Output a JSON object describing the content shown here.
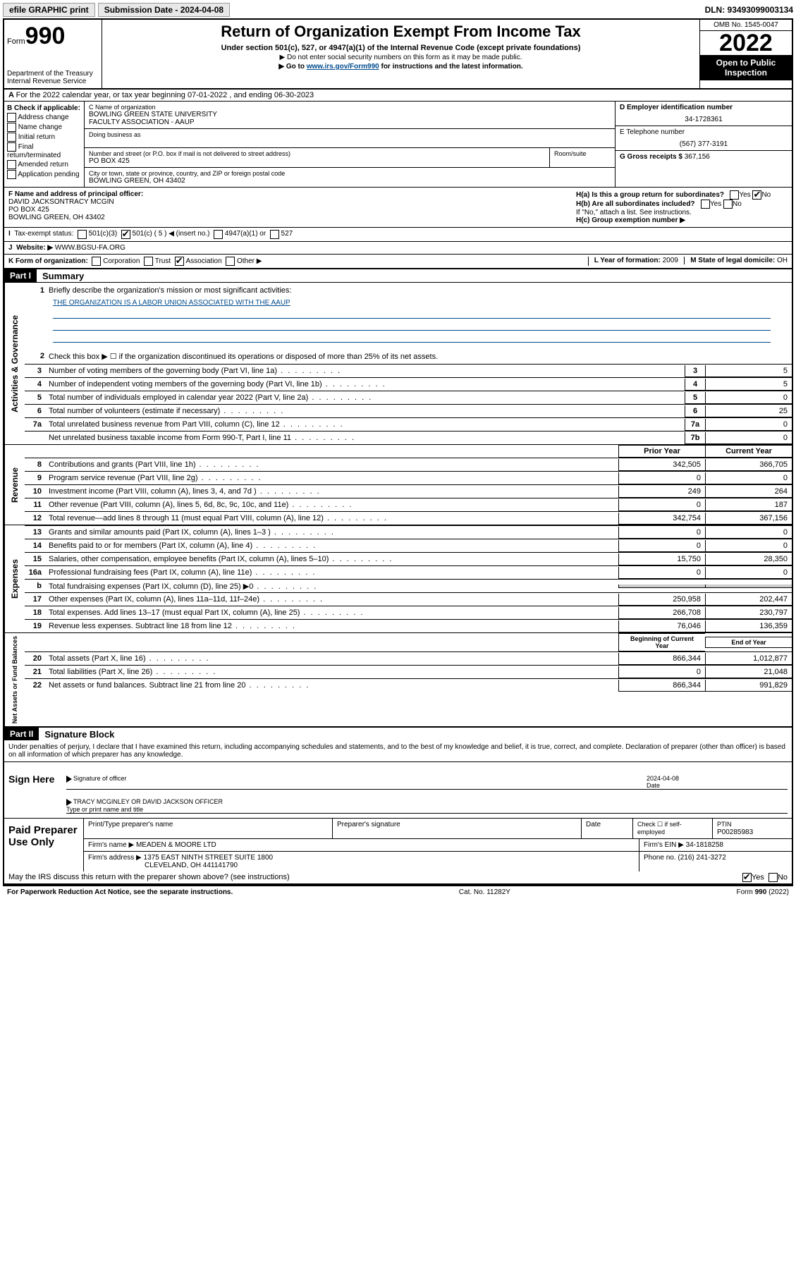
{
  "topbar": {
    "efile": "efile GRAPHIC print",
    "subdate_label": "Submission Date - 2024-04-08",
    "dln": "DLN: 93493099003134"
  },
  "header": {
    "form_word": "Form",
    "form_num": "990",
    "dept": "Department of the Treasury",
    "irs": "Internal Revenue Service",
    "title": "Return of Organization Exempt From Income Tax",
    "sub1": "Under section 501(c), 527, or 4947(a)(1) of the Internal Revenue Code (except private foundations)",
    "sub2": "▶ Do not enter social security numbers on this form as it may be made public.",
    "sub3_pre": "▶ Go to ",
    "sub3_link": "www.irs.gov/Form990",
    "sub3_post": " for instructions and the latest information.",
    "omb": "OMB No. 1545-0047",
    "year": "2022",
    "insp": "Open to Public Inspection"
  },
  "rowA": "For the 2022 calendar year, or tax year beginning 07-01-2022    , and ending 06-30-2023",
  "colB": {
    "label": "B Check if applicable:",
    "items": [
      "Address change",
      "Name change",
      "Initial return",
      "Final return/terminated",
      "Amended return",
      "Application pending"
    ]
  },
  "colC": {
    "name_label": "C Name of organization",
    "name": "BOWLING GREEN STATE UNIVERSITY\nFACULTY ASSOCIATION - AAUP",
    "dba": "Doing business as",
    "addr_label": "Number and street (or P.O. box if mail is not delivered to street address)",
    "room": "Room/suite",
    "addr": "PO BOX 425",
    "city_label": "City or town, state or province, country, and ZIP or foreign postal code",
    "city": "BOWLING GREEN, OH   43402"
  },
  "colD": {
    "ein_label": "D Employer identification number",
    "ein": "34-1728361",
    "tel_label": "E Telephone number",
    "tel": "(567) 377-3191",
    "gross_label": "G Gross receipts $",
    "gross": "367,156"
  },
  "rowF": {
    "label": "F  Name and address of principal officer:",
    "name": "DAVID JACKSONTRACY MCGIN",
    "addr1": "PO BOX 425",
    "addr2": "BOWLING GREEN, OH   43402"
  },
  "rowH": {
    "a": "H(a)  Is this a group return for subordinates?",
    "b": "H(b)  Are all subordinates included?",
    "b2": "If \"No,\" attach a list. See instructions.",
    "c": "H(c)  Group exemption number ▶"
  },
  "rowI": {
    "label": "Tax-exempt status:",
    "opts": [
      "501(c)(3)",
      "501(c) ( 5 ) ◀ (insert no.)",
      "4947(a)(1) or",
      "527"
    ],
    "checked_idx": 1
  },
  "rowJ": {
    "label": "Website: ▶",
    "val": "WWW.BGSU-FA.ORG"
  },
  "rowK": {
    "label": "K Form of organization:",
    "opts": [
      "Corporation",
      "Trust",
      "Association",
      "Other ▶"
    ],
    "checked_idx": 2,
    "year_label": "L Year of formation:",
    "year": "2009",
    "state_label": "M State of legal domicile:",
    "state": "OH"
  },
  "part1": {
    "tag": "Part I",
    "label": "Summary",
    "line1_label": "Briefly describe the organization's mission or most significant activities:",
    "line1_val": "THE ORGANIZATION IS A LABOR UNION ASSOCIATED WITH THE AAUP",
    "line2": "Check this box ▶ ☐  if the organization discontinued its operations or disposed of more than 25% of its net assets.",
    "gov_lines": [
      {
        "n": "3",
        "t": "Number of voting members of the governing body (Part VI, line 1a)",
        "box": "3",
        "v": "5"
      },
      {
        "n": "4",
        "t": "Number of independent voting members of the governing body (Part VI, line 1b)",
        "box": "4",
        "v": "5"
      },
      {
        "n": "5",
        "t": "Total number of individuals employed in calendar year 2022 (Part V, line 2a)",
        "box": "5",
        "v": "0"
      },
      {
        "n": "6",
        "t": "Total number of volunteers (estimate if necessary)",
        "box": "6",
        "v": "25"
      },
      {
        "n": "7a",
        "t": "Total unrelated business revenue from Part VIII, column (C), line 12",
        "box": "7a",
        "v": "0"
      },
      {
        "n": "",
        "t": "Net unrelated business taxable income from Form 990-T, Part I, line 11",
        "box": "7b",
        "v": "0"
      }
    ],
    "col_hdrs": {
      "prior": "Prior Year",
      "current": "Current Year"
    },
    "rev_lines": [
      {
        "n": "8",
        "t": "Contributions and grants (Part VIII, line 1h)",
        "p": "342,505",
        "c": "366,705"
      },
      {
        "n": "9",
        "t": "Program service revenue (Part VIII, line 2g)",
        "p": "0",
        "c": "0"
      },
      {
        "n": "10",
        "t": "Investment income (Part VIII, column (A), lines 3, 4, and 7d )",
        "p": "249",
        "c": "264"
      },
      {
        "n": "11",
        "t": "Other revenue (Part VIII, column (A), lines 5, 6d, 8c, 9c, 10c, and 11e)",
        "p": "0",
        "c": "187"
      },
      {
        "n": "12",
        "t": "Total revenue—add lines 8 through 11 (must equal Part VIII, column (A), line 12)",
        "p": "342,754",
        "c": "367,156"
      }
    ],
    "exp_lines": [
      {
        "n": "13",
        "t": "Grants and similar amounts paid (Part IX, column (A), lines 1–3 )",
        "p": "0",
        "c": "0"
      },
      {
        "n": "14",
        "t": "Benefits paid to or for members (Part IX, column (A), line 4)",
        "p": "0",
        "c": "0"
      },
      {
        "n": "15",
        "t": "Salaries, other compensation, employee benefits (Part IX, column (A), lines 5–10)",
        "p": "15,750",
        "c": "28,350"
      },
      {
        "n": "16a",
        "t": "Professional fundraising fees (Part IX, column (A), line 11e)",
        "p": "0",
        "c": "0"
      },
      {
        "n": "b",
        "t": "Total fundraising expenses (Part IX, column (D), line 25) ▶0",
        "p": "",
        "c": "",
        "gray": true
      },
      {
        "n": "17",
        "t": "Other expenses (Part IX, column (A), lines 11a–11d, 11f–24e)",
        "p": "250,958",
        "c": "202,447"
      },
      {
        "n": "18",
        "t": "Total expenses. Add lines 13–17 (must equal Part IX, column (A), line 25)",
        "p": "266,708",
        "c": "230,797"
      },
      {
        "n": "19",
        "t": "Revenue less expenses. Subtract line 18 from line 12",
        "p": "76,046",
        "c": "136,359"
      }
    ],
    "na_hdrs": {
      "beg": "Beginning of Current Year",
      "end": "End of Year"
    },
    "na_lines": [
      {
        "n": "20",
        "t": "Total assets (Part X, line 16)",
        "p": "866,344",
        "c": "1,012,877"
      },
      {
        "n": "21",
        "t": "Total liabilities (Part X, line 26)",
        "p": "0",
        "c": "21,048"
      },
      {
        "n": "22",
        "t": "Net assets or fund balances. Subtract line 21 from line 20",
        "p": "866,344",
        "c": "991,829"
      }
    ],
    "vtabs": {
      "gov": "Activities & Governance",
      "rev": "Revenue",
      "exp": "Expenses",
      "na": "Net Assets or Fund Balances"
    }
  },
  "part2": {
    "tag": "Part II",
    "label": "Signature Block",
    "perjury": "Under penalties of perjury, I declare that I have examined this return, including accompanying schedules and statements, and to the best of my knowledge and belief, it is true, correct, and complete. Declaration of preparer (other than officer) is based on all information of which preparer has any knowledge.",
    "sign_here": "Sign Here",
    "sig_officer": "Signature of officer",
    "date_lbl": "Date",
    "date_val": "2024-04-08",
    "name_title": "TRACY MCGINLEY OR DAVID JACKSON  OFFICER",
    "name_title_lbl": "Type or print name and title"
  },
  "prep": {
    "label": "Paid Preparer Use Only",
    "hdrs": [
      "Print/Type preparer's name",
      "Preparer's signature",
      "Date"
    ],
    "check_lbl": "Check ☐ if self-employed",
    "ptin_lbl": "PTIN",
    "ptin": "P00285983",
    "firm_name_lbl": "Firm's name      ▶",
    "firm_name": "MEADEN & MOORE LTD",
    "firm_ein_lbl": "Firm's EIN ▶",
    "firm_ein": "34-1818258",
    "firm_addr_lbl": "Firm's address ▶",
    "firm_addr1": "1375 EAST NINTH STREET SUITE 1800",
    "firm_addr2": "CLEVELAND, OH   441141790",
    "phone_lbl": "Phone no.",
    "phone": "(216) 241-3272"
  },
  "discuss": "May the IRS discuss this return with the preparer shown above? (see instructions)",
  "footer": {
    "left": "For Paperwork Reduction Act Notice, see the separate instructions.",
    "mid": "Cat. No. 11282Y",
    "right": "Form 990 (2022)"
  }
}
